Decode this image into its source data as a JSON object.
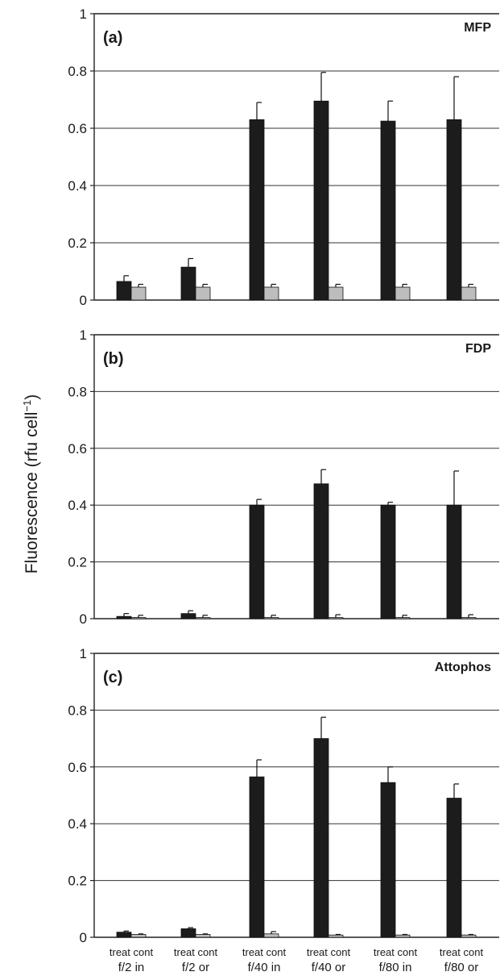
{
  "ylabel": "Fluorescence (rfu cell",
  "ylabel_superscript": "−1",
  "ylabel_close": ")",
  "colors": {
    "treat": "#1c1c1c",
    "cont": "#bdbdbd",
    "axis": "#222222",
    "grid": "#333333"
  },
  "chart_data": [
    {
      "type": "bar",
      "panel": "(a)",
      "name": "MFP",
      "ylim": [
        0,
        1
      ],
      "yticks": [
        "0",
        "0.2",
        "0.4",
        "0.6",
        "0.8",
        "1"
      ],
      "grid": true,
      "categories": [
        "f/2 in",
        "f/2 or",
        "f/40 in",
        "f/40 or",
        "f/80 in",
        "f/80 or"
      ],
      "series": [
        {
          "name": "treat",
          "values": [
            0.065,
            0.115,
            0.63,
            0.695,
            0.625,
            0.63
          ],
          "errors": [
            0.02,
            0.03,
            0.06,
            0.1,
            0.07,
            0.15
          ]
        },
        {
          "name": "cont",
          "values": [
            0.045,
            0.045,
            0.045,
            0.045,
            0.045,
            0.045
          ],
          "errors": [
            0.01,
            0.01,
            0.01,
            0.01,
            0.01,
            0.01
          ]
        }
      ]
    },
    {
      "type": "bar",
      "panel": "(b)",
      "name": "FDP",
      "ylim": [
        0,
        1
      ],
      "yticks": [
        "0",
        "0.2",
        "0.4",
        "0.6",
        "0.8",
        "1"
      ],
      "grid": true,
      "categories": [
        "f/2 in",
        "f/2 or",
        "f/40 in",
        "f/40 or",
        "f/80 in",
        "f/80 or"
      ],
      "series": [
        {
          "name": "treat",
          "values": [
            0.008,
            0.018,
            0.4,
            0.475,
            0.4,
            0.4
          ],
          "errors": [
            0.01,
            0.01,
            0.02,
            0.05,
            0.01,
            0.12
          ]
        },
        {
          "name": "cont",
          "values": [
            0.004,
            0.004,
            0.004,
            0.004,
            0.004,
            0.004
          ],
          "errors": [
            0.008,
            0.008,
            0.008,
            0.01,
            0.008,
            0.01
          ]
        }
      ]
    },
    {
      "type": "bar",
      "panel": "(c)",
      "name": "Attophos",
      "ylim": [
        0,
        1
      ],
      "yticks": [
        "0",
        "0.2",
        "0.4",
        "0.6",
        "0.8",
        "1"
      ],
      "grid": true,
      "categories": [
        "f/2 in",
        "f/2 or",
        "f/40 in",
        "f/40 or",
        "f/80 in",
        "f/80 or"
      ],
      "series": [
        {
          "name": "treat",
          "values": [
            0.018,
            0.03,
            0.565,
            0.7,
            0.545,
            0.49
          ],
          "errors": [
            0.004,
            0.004,
            0.06,
            0.075,
            0.055,
            0.05
          ]
        },
        {
          "name": "cont",
          "values": [
            0.01,
            0.01,
            0.012,
            0.008,
            0.008,
            0.008
          ],
          "errors": [
            0.002,
            0.002,
            0.008,
            0.002,
            0.002,
            0.002
          ]
        }
      ]
    }
  ],
  "xaxis": {
    "group_labels": [
      "treat cont",
      "treat cont",
      "treat cont",
      "treat cont",
      "treat cont",
      "treat cont"
    ],
    "category_labels": [
      "f/2  in",
      "f/2  or",
      "f/40  in",
      "f/40  or",
      "f/80  in",
      "f/80  or"
    ]
  }
}
